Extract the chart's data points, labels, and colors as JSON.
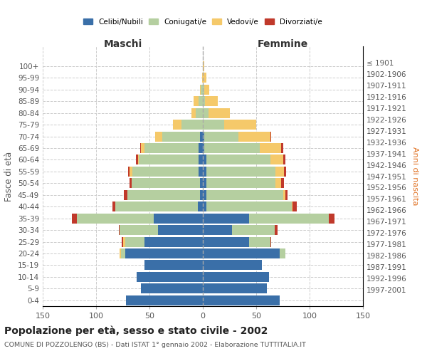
{
  "age_groups": [
    "0-4",
    "5-9",
    "10-14",
    "15-19",
    "20-24",
    "25-29",
    "30-34",
    "35-39",
    "40-44",
    "45-49",
    "50-54",
    "55-59",
    "60-64",
    "65-69",
    "70-74",
    "75-79",
    "80-84",
    "85-89",
    "90-94",
    "95-99",
    "100+"
  ],
  "birth_years": [
    "1997-2001",
    "1992-1996",
    "1987-1991",
    "1982-1986",
    "1977-1981",
    "1972-1976",
    "1967-1971",
    "1962-1966",
    "1957-1961",
    "1952-1956",
    "1947-1951",
    "1942-1946",
    "1937-1941",
    "1932-1936",
    "1927-1931",
    "1922-1926",
    "1917-1921",
    "1912-1916",
    "1907-1911",
    "1902-1906",
    "≤ 1901"
  ],
  "maschi": {
    "celibi": [
      72,
      58,
      62,
      55,
      73,
      55,
      42,
      46,
      5,
      3,
      3,
      4,
      4,
      4,
      3,
      0,
      0,
      0,
      0,
      0,
      0
    ],
    "coniugati": [
      0,
      0,
      0,
      0,
      4,
      18,
      36,
      72,
      77,
      68,
      64,
      62,
      56,
      51,
      35,
      20,
      7,
      4,
      2,
      0,
      0
    ],
    "vedovi": [
      0,
      0,
      0,
      0,
      1,
      2,
      0,
      0,
      0,
      0,
      0,
      3,
      1,
      3,
      7,
      8,
      4,
      5,
      1,
      1,
      0
    ],
    "divorziati": [
      0,
      0,
      0,
      0,
      0,
      1,
      1,
      5,
      3,
      3,
      2,
      1,
      2,
      1,
      0,
      0,
      0,
      0,
      0,
      0,
      0
    ]
  },
  "femmine": {
    "nubili": [
      72,
      60,
      62,
      55,
      72,
      43,
      27,
      43,
      3,
      3,
      3,
      3,
      3,
      1,
      1,
      0,
      0,
      0,
      0,
      0,
      0
    ],
    "coniugate": [
      0,
      0,
      0,
      0,
      5,
      20,
      40,
      75,
      80,
      72,
      65,
      65,
      60,
      52,
      32,
      20,
      5,
      2,
      1,
      0,
      0
    ],
    "vedove": [
      0,
      0,
      0,
      0,
      0,
      0,
      0,
      0,
      1,
      2,
      5,
      8,
      12,
      20,
      30,
      30,
      20,
      12,
      5,
      3,
      1
    ],
    "divorziate": [
      0,
      0,
      0,
      0,
      0,
      1,
      3,
      5,
      4,
      2,
      3,
      2,
      2,
      2,
      1,
      0,
      0,
      0,
      0,
      0,
      0
    ]
  },
  "colors": {
    "celibi": "#3a6fa8",
    "coniugati": "#b5cfa0",
    "vedovi": "#f5c96a",
    "divorziati": "#c0392b"
  },
  "xlim": 150,
  "title": "Popolazione per età, sesso e stato civile - 2002",
  "subtitle": "COMUNE DI POZZOLENGO (BS) - Dati ISTAT 1° gennaio 2002 - Elaborazione TUTTITALIA.IT",
  "ylabel": "Fasce di età",
  "ylabel_right": "Anni di nascita",
  "xlabel_left": "Maschi",
  "xlabel_right": "Femmine"
}
